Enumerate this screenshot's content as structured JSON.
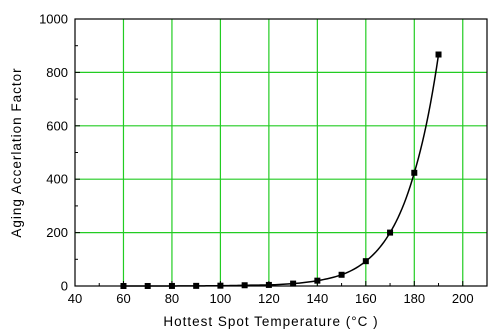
{
  "colors": {
    "grid": "#22cc22",
    "curve": "#000000",
    "marker": "#000000",
    "axis": "#000000",
    "background": "#ffffff"
  },
  "chart_data": {
    "type": "line",
    "title": "",
    "xlabel": "Hottest Spot Temperature (°C )",
    "ylabel": "Aging Accerlation Factor",
    "xlim": [
      40,
      210
    ],
    "ylim": [
      0,
      1000
    ],
    "xticks": [
      "40",
      "60",
      "80",
      "100",
      "120",
      "140",
      "160",
      "180",
      "200"
    ],
    "yticks": [
      "0",
      "200",
      "400",
      "600",
      "800",
      "1000"
    ],
    "grid": true,
    "legend": "none",
    "markers": "filled-square",
    "curve": "smooth",
    "series": [
      {
        "x": [
          60,
          70,
          80,
          90,
          100,
          110,
          120,
          130,
          140,
          150,
          160,
          170,
          180,
          190
        ],
        "y": [
          0.01,
          0.05,
          0.2,
          0.5,
          1.2,
          2.8,
          4,
          9,
          20,
          42,
          93,
          200,
          424,
          867
        ]
      }
    ]
  }
}
